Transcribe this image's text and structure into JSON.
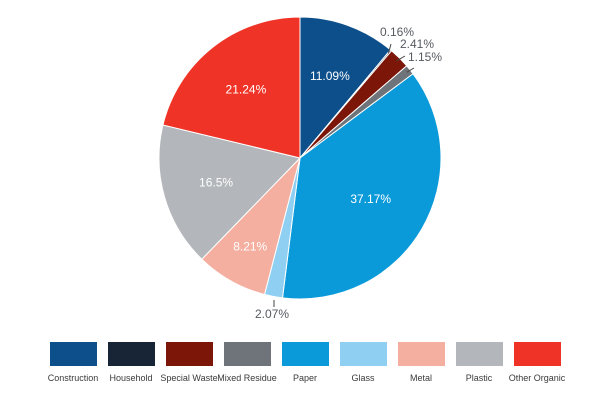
{
  "chart_data": {
    "type": "pie",
    "title": "",
    "slices": [
      {
        "name": "Construction",
        "label": "11.09%",
        "value": 11.09,
        "color": "#0d4f8b"
      },
      {
        "name": "Household",
        "label": "0.16%",
        "value": 0.16,
        "color": "#172536"
      },
      {
        "name": "Special Waste",
        "label": "2.41%",
        "value": 2.41,
        "color": "#7b1608"
      },
      {
        "name": "Mixed Residue",
        "label": "1.15%",
        "value": 1.15,
        "color": "#6f747a"
      },
      {
        "name": "Paper",
        "label": "37.17%",
        "value": 37.17,
        "color": "#0b9ad9"
      },
      {
        "name": "Glass",
        "label": "2.07%",
        "value": 2.07,
        "color": "#8fd0f2"
      },
      {
        "name": "Metal",
        "label": "8.21%",
        "value": 8.21,
        "color": "#f5afa0"
      },
      {
        "name": "Plastic",
        "label": "16.5%",
        "value": 16.5,
        "color": "#b3b6ba"
      },
      {
        "name": "Other Organic",
        "label": "21.24%",
        "value": 21.24,
        "color": "#ef3326"
      }
    ],
    "legend_position": "bottom"
  }
}
